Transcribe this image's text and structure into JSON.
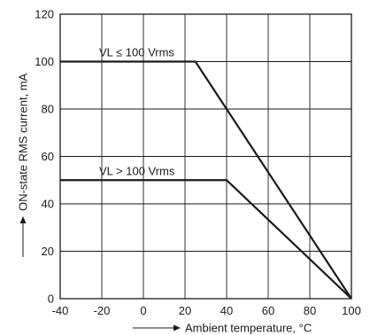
{
  "chart_data": {
    "type": "line",
    "xlabel": "Ambient temperature, °C",
    "ylabel": "ON-state RMS current, mA",
    "xlim": [
      -40,
      100
    ],
    "ylim": [
      0,
      120
    ],
    "x_ticks": [
      -40,
      -20,
      0,
      20,
      40,
      60,
      80,
      100
    ],
    "y_ticks": [
      0,
      20,
      40,
      60,
      80,
      100,
      120
    ],
    "grid": true,
    "axis_arrows": true,
    "series": [
      {
        "label": "VL ≤ 100 Vrms",
        "points": [
          [
            -40,
            100
          ],
          [
            25,
            100
          ],
          [
            100,
            0
          ]
        ]
      },
      {
        "label": "VL > 100 Vrms",
        "points": [
          [
            -40,
            50
          ],
          [
            40,
            50
          ],
          [
            100,
            0
          ]
        ]
      }
    ]
  }
}
